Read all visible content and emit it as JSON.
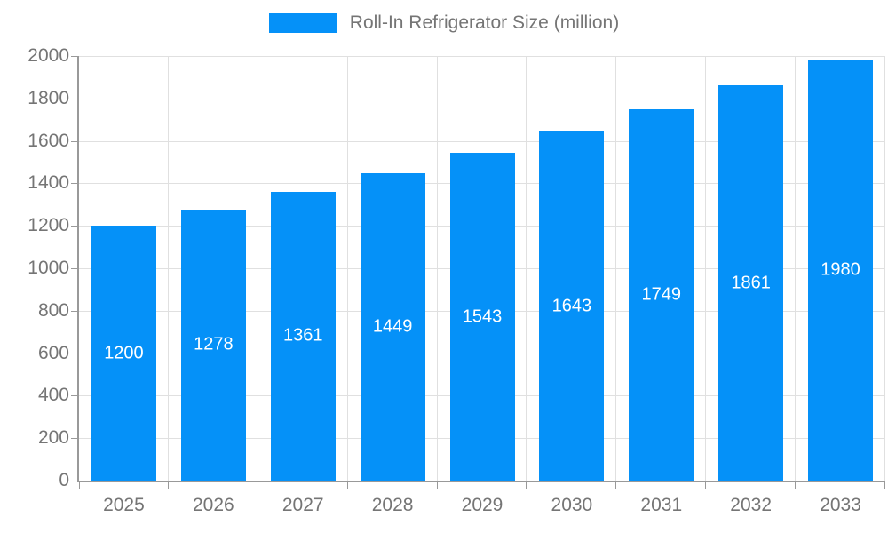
{
  "legend": {
    "label": "Roll-In Refrigerator Size (million)"
  },
  "colors": {
    "bar": "#0591F8",
    "grid": "#E0E0E0",
    "axis": "#999999",
    "text": "#757575",
    "bar_label": "#FFFFFF",
    "background": "#FFFFFF"
  },
  "chart_data": {
    "type": "bar",
    "title": "Roll-In Refrigerator Size (million)",
    "categories": [
      "2025",
      "2026",
      "2027",
      "2028",
      "2029",
      "2030",
      "2031",
      "2032",
      "2033"
    ],
    "values": [
      1200,
      1278,
      1361,
      1449,
      1543,
      1643,
      1749,
      1861,
      1980
    ],
    "xlabel": "",
    "ylabel": "",
    "ylim": [
      0,
      2000
    ],
    "ytick_step": 200,
    "ytick_labels": [
      "0",
      "200",
      "400",
      "600",
      "800",
      "1000",
      "1200",
      "1400",
      "1600",
      "1800",
      "2000"
    ],
    "grid": true,
    "legend_position": "top",
    "bar_label_position": "inside-center"
  }
}
